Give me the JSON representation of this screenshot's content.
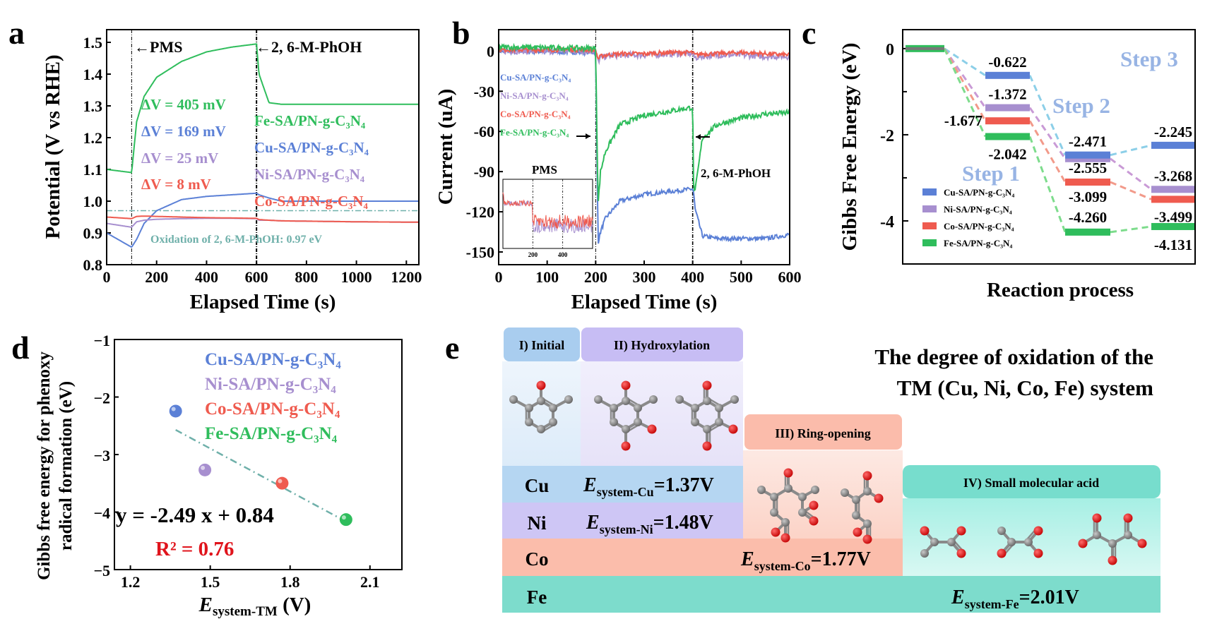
{
  "colors": {
    "cu": "#5b80d6",
    "ni": "#a78fcf",
    "co": "#ef5b4f",
    "fe": "#2fbd5c",
    "ref": "#6fb0aa"
  },
  "panels": {
    "a": "a",
    "b": "b",
    "c": "c",
    "d": "d",
    "e": "e"
  },
  "chart_data": [
    {
      "type": "line",
      "panel": "a",
      "xlabel": "Elapsed Time (s)",
      "ylabel": "Potential (V vs RHE)",
      "xlim": [
        0,
        1250
      ],
      "ylim": [
        0.8,
        1.54
      ],
      "xticks": [
        "0",
        "200",
        "400",
        "600",
        "800",
        "1000",
        "1200"
      ],
      "yticks": [
        "0.8",
        "0.9",
        "1.0",
        "1.1",
        "1.2",
        "1.3",
        "1.4",
        "1.5"
      ],
      "x": [
        0,
        100,
        120,
        150,
        200,
        300,
        400,
        500,
        600,
        610,
        650,
        700,
        800,
        1000,
        1200
      ],
      "series": [
        {
          "name": "Fe-SA/PN-g-C₃N₄",
          "color": "fe",
          "values": [
            1.1,
            1.09,
            1.25,
            1.33,
            1.39,
            1.44,
            1.47,
            1.485,
            1.495,
            1.4,
            1.31,
            1.305,
            1.305,
            1.305,
            1.305
          ]
        },
        {
          "name": "Cu-SA/PN-g-C₃N₄",
          "color": "cu",
          "values": [
            0.9,
            0.855,
            0.88,
            0.93,
            0.97,
            1.005,
            1.015,
            1.02,
            1.025,
            1.02,
            1.01,
            1.0,
            1.0,
            1.0,
            1.0
          ]
        },
        {
          "name": "Ni-SA/PN-g-C₃N₄",
          "color": "ni",
          "values": [
            0.93,
            0.918,
            0.935,
            0.94,
            0.943,
            0.945,
            0.946,
            0.946,
            0.945,
            0.94,
            0.94,
            0.938,
            0.937,
            0.935,
            0.934
          ]
        },
        {
          "name": "Co-SA/PN-g-C₃N₄",
          "color": "co",
          "values": [
            0.95,
            0.945,
            0.952,
            0.953,
            0.952,
            0.95,
            0.948,
            0.947,
            0.946,
            0.942,
            0.94,
            0.938,
            0.937,
            0.935,
            0.934
          ]
        }
      ],
      "delta_labels": [
        "ΔV = 405 mV",
        "ΔV = 169 mV",
        "ΔV = 25 mV",
        "ΔV = 8 mV"
      ],
      "events": [
        {
          "x": 100,
          "label": "←PMS"
        },
        {
          "x": 600,
          "label": "←2, 6-M-PhOH"
        }
      ],
      "reference": {
        "y": 0.97,
        "label": "Oxidation of 2, 6-M-PhOH: 0.97 eV"
      }
    },
    {
      "type": "line",
      "panel": "b",
      "xlabel": "Elapsed Time (s)",
      "ylabel": "Current (uA)",
      "xlim": [
        0,
        600
      ],
      "ylim": [
        -159.5,
        16
      ],
      "xticks": [
        "0",
        "100",
        "200",
        "300",
        "400",
        "500",
        "600"
      ],
      "yticks": [
        "0",
        "-30",
        "-60",
        "-90",
        "-120",
        "-150"
      ],
      "x": [
        0,
        200,
        205,
        210,
        220,
        250,
        300,
        350,
        400,
        402,
        405,
        420,
        450,
        500,
        550,
        600
      ],
      "series": [
        {
          "name": "Cu-SA/PN-g-C₃N₄",
          "color": "cu",
          "values": [
            0,
            -1,
            -143,
            -135,
            -125,
            -112,
            -107,
            -105,
            -103,
            -106,
            -118,
            -138,
            -140,
            -140,
            -140,
            -137
          ]
        },
        {
          "name": "Ni-SA/PN-g-C₃N₄",
          "color": "ni",
          "values": [
            0,
            0,
            -8,
            -5,
            -4,
            -3,
            -3,
            -2,
            -2,
            -4,
            -5,
            -4,
            -3,
            -3,
            -4,
            -4
          ]
        },
        {
          "name": "Co-SA/PN-g-C₃N₄",
          "color": "co",
          "values": [
            1,
            1,
            -6,
            -4,
            -3,
            -2,
            -2,
            -1,
            -1,
            -2,
            -3,
            -2,
            -2,
            -1,
            -2,
            -3
          ]
        },
        {
          "name": "Fe-SA/PN-g-C₃N₄",
          "color": "fe",
          "values": [
            3,
            2,
            -115,
            -90,
            -75,
            -55,
            -48,
            -45,
            -42,
            -100,
            -105,
            -65,
            -55,
            -50,
            -47,
            -46
          ]
        }
      ],
      "events": [
        {
          "x": 200,
          "label": "PMS"
        },
        {
          "x": 400,
          "label": "2, 6-M-PhOH"
        }
      ],
      "inset": {
        "xticks": [
          "200",
          "400"
        ]
      }
    },
    {
      "type": "bar",
      "panel": "c",
      "ylabel": "Gibbs Free Energy (eV)",
      "xlabel": "Reaction process",
      "ylim": [
        -5,
        0.44
      ],
      "yticks": [
        "0",
        "-2",
        "-4"
      ],
      "step_labels": [
        "Step 1",
        "Step 2",
        "Step 3"
      ],
      "series": [
        {
          "name": "Cu-SA/PN-g-C₃N₄",
          "color": "cu",
          "values": [
            0,
            -0.622,
            -2.471,
            -2.245
          ],
          "labels": [
            "",
            "-0.622",
            "-2.471",
            "-2.245"
          ]
        },
        {
          "name": "Ni-SA/PN-g-C₃N₄",
          "color": "ni",
          "values": [
            0,
            -1.372,
            -2.555,
            -3.268
          ],
          "labels": [
            "",
            "-1.372",
            "-2.555",
            "-3.268"
          ]
        },
        {
          "name": "Co-SA/PN-g-C₃N₄",
          "color": "co",
          "values": [
            0,
            -1.677,
            -3.099,
            -3.499
          ],
          "labels": [
            "",
            "-1.677",
            "-3.099",
            "-3.499"
          ]
        },
        {
          "name": "Fe-SA/PN-g-C₃N₄",
          "color": "fe",
          "values": [
            0,
            -2.042,
            -4.26,
            -4.131
          ],
          "labels": [
            "",
            "-2.042",
            "-4.260",
            "-4.131"
          ]
        }
      ]
    },
    {
      "type": "scatter",
      "panel": "d",
      "ylabel": [
        "Gibbs free energy for phenoxy",
        "radical formation (eV)"
      ],
      "xlabel": {
        "symbol": "E",
        "sub": "system-TM",
        "unit": " (V)"
      },
      "xlim": [
        1.14,
        2.22
      ],
      "ylim": [
        -5,
        -1
      ],
      "xticks": [
        "1.2",
        "1.5",
        "1.8",
        "2.1"
      ],
      "yticks": [
        "−1",
        "−2",
        "−3",
        "−4",
        "−5"
      ],
      "points": [
        {
          "name": "Cu-SA/PN-g-C₃N₄",
          "color": "cu",
          "x": 1.37,
          "y": -2.245
        },
        {
          "name": "Ni-SA/PN-g-C₃N₄",
          "color": "ni",
          "x": 1.48,
          "y": -3.268
        },
        {
          "name": "Co-SA/PN-g-C₃N₄",
          "color": "co",
          "x": 1.77,
          "y": -3.499
        },
        {
          "name": "Fe-SA/PN-g-C₃N₄",
          "color": "fe",
          "x": 2.01,
          "y": -4.131
        }
      ],
      "fit": {
        "slope": -2.49,
        "intercept": 0.84,
        "equation": "y = -2.49 x + 0.84",
        "r2": "R² = 0.76"
      }
    }
  ],
  "panel_e": {
    "title": [
      "The degree of oxidation of the",
      "TM (Cu, Ni, Co, Fe) system"
    ],
    "stages": [
      "I) Initial",
      "II) Hydroxylation",
      "III) Ring-opening",
      "IV) Small molecular acid"
    ],
    "rows": [
      {
        "metal": "Cu",
        "symbol": "E",
        "sub": "system-Cu",
        "value": "=1.37V"
      },
      {
        "metal": "Ni",
        "symbol": "E",
        "sub": "system-Ni",
        "value": "=1.48V"
      },
      {
        "metal": "Co",
        "symbol": "E",
        "sub": "system-Co",
        "value": "=1.77V"
      },
      {
        "metal": "Fe",
        "symbol": "E",
        "sub": "system-Fe",
        "value": "=2.01V"
      }
    ]
  }
}
